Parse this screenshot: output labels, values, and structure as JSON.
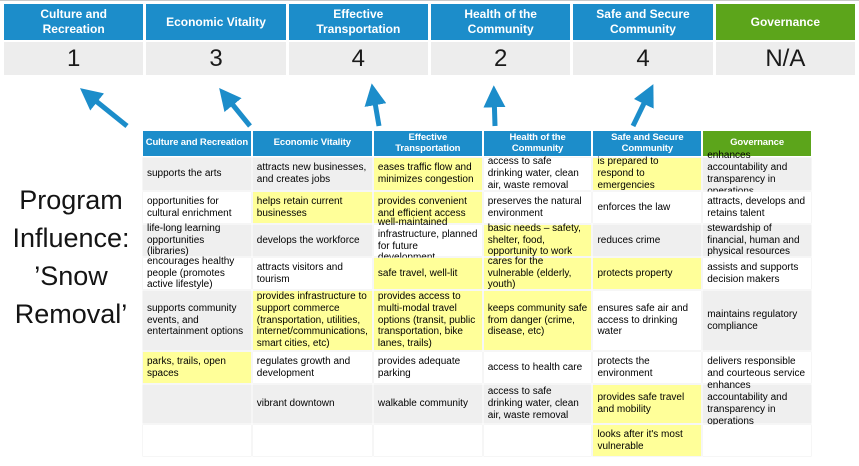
{
  "slide": {
    "title_text": "Program Influence: ’Snow Removal’",
    "title_lines": [
      "Program",
      "Influence:",
      "’Snow",
      "Removal’"
    ]
  },
  "colors": {
    "blue": "#1c8dca",
    "green": "#5ca51b",
    "score_bg": "#ededed",
    "cell_gray": "#efefef",
    "cell_yellow": "#ffff99"
  },
  "scoreboard": {
    "items": [
      {
        "label": "Culture and Recreation",
        "score": "1",
        "color": "blue"
      },
      {
        "label": "Economic Vitality",
        "score": "3",
        "color": "blue"
      },
      {
        "label": "Effective Transportation",
        "score": "4",
        "color": "blue"
      },
      {
        "label": "Health of the Community",
        "score": "2",
        "color": "blue"
      },
      {
        "label": "Safe and Secure Community",
        "score": "4",
        "color": "blue"
      },
      {
        "label": "Governance",
        "score": "N/A",
        "color": "green"
      }
    ]
  },
  "matrix": {
    "headers": [
      {
        "label": "Culture and Recreation",
        "color": "blue"
      },
      {
        "label": "Economic Vitality",
        "color": "blue"
      },
      {
        "label": "Effective Transportation",
        "color": "blue"
      },
      {
        "label": "Health of the Community",
        "color": "blue"
      },
      {
        "label": "Safe and Secure Community",
        "color": "blue"
      },
      {
        "label": "Governance",
        "color": "green"
      }
    ],
    "rows": [
      [
        {
          "text": "supports the arts",
          "bg": "gray"
        },
        {
          "text": "attracts new businesses, and creates jobs",
          "bg": "gray"
        },
        {
          "text": "eases traffic flow and minimizes congestion",
          "bg": "yellow"
        },
        {
          "text": "access to safe drinking water, clean air, waste removal",
          "bg": "white"
        },
        {
          "text": "is prepared to respond to emergencies",
          "bg": "yellow"
        },
        {
          "text": "enhances accountability and transparency in operations",
          "bg": "gray"
        }
      ],
      [
        {
          "text": "opportunities for cultural enrichment",
          "bg": "white"
        },
        {
          "text": "helps retain current businesses",
          "bg": "yellow"
        },
        {
          "text": "provides convenient and efficient access",
          "bg": "yellow"
        },
        {
          "text": "preserves the natural environment",
          "bg": "white"
        },
        {
          "text": "enforces the law",
          "bg": "white"
        },
        {
          "text": "attracts, develops and retains talent",
          "bg": "white"
        }
      ],
      [
        {
          "text": "life-long learning opportunities (libraries)",
          "bg": "gray"
        },
        {
          "text": "develops the workforce",
          "bg": "gray"
        },
        {
          "text": "well-maintained infrastructure, planned for future development",
          "bg": "white"
        },
        {
          "text": "basic needs – safety, shelter, food, opportunity to work",
          "bg": "yellow"
        },
        {
          "text": "reduces crime",
          "bg": "gray"
        },
        {
          "text": "stewardship of financial, human and physical resources",
          "bg": "gray"
        }
      ],
      [
        {
          "text": "encourages healthy people (promotes active lifestyle)",
          "bg": "white"
        },
        {
          "text": "attracts visitors and tourism",
          "bg": "white"
        },
        {
          "text": "safe travel, well-lit",
          "bg": "yellow"
        },
        {
          "text": "cares for the vulnerable (elderly, youth)",
          "bg": "yellow"
        },
        {
          "text": "protects property",
          "bg": "yellow"
        },
        {
          "text": "assists and supports decision makers",
          "bg": "white"
        }
      ],
      [
        {
          "text": "supports community events, and entertainment options",
          "bg": "gray"
        },
        {
          "text": "provides infrastructure to support commerce (transportation, utilities, internet/communications, smart cities, etc)",
          "bg": "yellow"
        },
        {
          "text": "provides access to multi-modal travel options (transit, public transportation, bike lanes, trails)",
          "bg": "yellow"
        },
        {
          "text": "keeps community safe from danger (crime, disease, etc)",
          "bg": "yellow"
        },
        {
          "text": "ensures safe air and access to drinking water",
          "bg": "white"
        },
        {
          "text": "maintains regulatory compliance",
          "bg": "gray"
        }
      ],
      [
        {
          "text": "parks, trails, open spaces",
          "bg": "yellow"
        },
        {
          "text": "regulates growth and development",
          "bg": "white"
        },
        {
          "text": "provides adequate parking",
          "bg": "white"
        },
        {
          "text": "access to health care",
          "bg": "white"
        },
        {
          "text": "protects the environment",
          "bg": "white"
        },
        {
          "text": "delivers responsible and courteous service",
          "bg": "white"
        }
      ],
      [
        {
          "text": "",
          "bg": "gray"
        },
        {
          "text": "vibrant downtown",
          "bg": "gray"
        },
        {
          "text": "walkable community",
          "bg": "gray"
        },
        {
          "text": "access to safe drinking water, clean air, waste removal",
          "bg": "gray"
        },
        {
          "text": "provides safe travel and mobility",
          "bg": "yellow"
        },
        {
          "text": "enhances accountability and transparency in operations",
          "bg": "gray"
        }
      ],
      [
        {
          "text": "",
          "bg": "white"
        },
        {
          "text": "",
          "bg": "white"
        },
        {
          "text": "",
          "bg": "white"
        },
        {
          "text": "",
          "bg": "white"
        },
        {
          "text": "looks after it's most vulnerable",
          "bg": "yellow"
        },
        {
          "text": "",
          "bg": "white"
        }
      ]
    ]
  }
}
